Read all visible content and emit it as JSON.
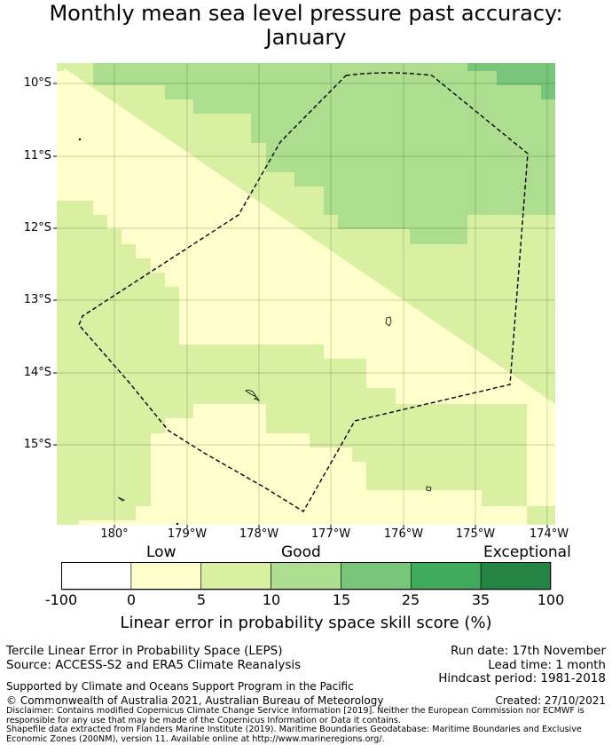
{
  "title": "Monthly mean sea level pressure past accuracy:\nJanuary",
  "map": {
    "lat_labels": [
      "10°S",
      "11°S",
      "12°S",
      "13°S",
      "14°S",
      "15°S"
    ],
    "lon_labels": [
      "180°",
      "179°W",
      "178°W",
      "177°W",
      "176°W",
      "175°W",
      "174°W"
    ],
    "boundary_style": "dashed EEZ outline"
  },
  "colorbar": {
    "categories": [
      "Low",
      "Good",
      "Exceptional"
    ],
    "ticks": [
      "-100",
      "0",
      "5",
      "10",
      "15",
      "25",
      "35",
      "100"
    ],
    "colors": [
      "#ffffff",
      "#ffffcc",
      "#d9f0a3",
      "#addd8e",
      "#78c679",
      "#41ab5d",
      "#238443"
    ],
    "title": "Linear error in probability space skill score (%)"
  },
  "footer": {
    "product": "Tercile Linear Error in Probability Space (LEPS)",
    "source": "Source: ACCESS-S2 and ERA5 Climate Reanalysis",
    "run_date": "Run date: 17th November",
    "lead_time": "Lead time: 1 month",
    "hindcast": "Hindcast period: 1981-2018",
    "supported": "Supported by Climate and Oceans Support Program in the Pacific",
    "copyright": "© Commonwealth of Australia 2021, Australian Bureau of Meteorology",
    "created": "Created: 27/10/2021",
    "disclaimer": "Disclaimer: Contains modified Copernicus Climate Change Service Information [2019]. Neither the European Commission nor ECMWF is responsible for any use that may be made of the Copernicus Information or Data it contains.",
    "shapefile": "Shapefile data extracted from Flanders Marine Institute (2019). Maritime Boundaries Geodatabase: Maritime Boundaries and Exclusive Economic Zones (200NM), version 11. Available online at http://www.marineregions.org/."
  }
}
